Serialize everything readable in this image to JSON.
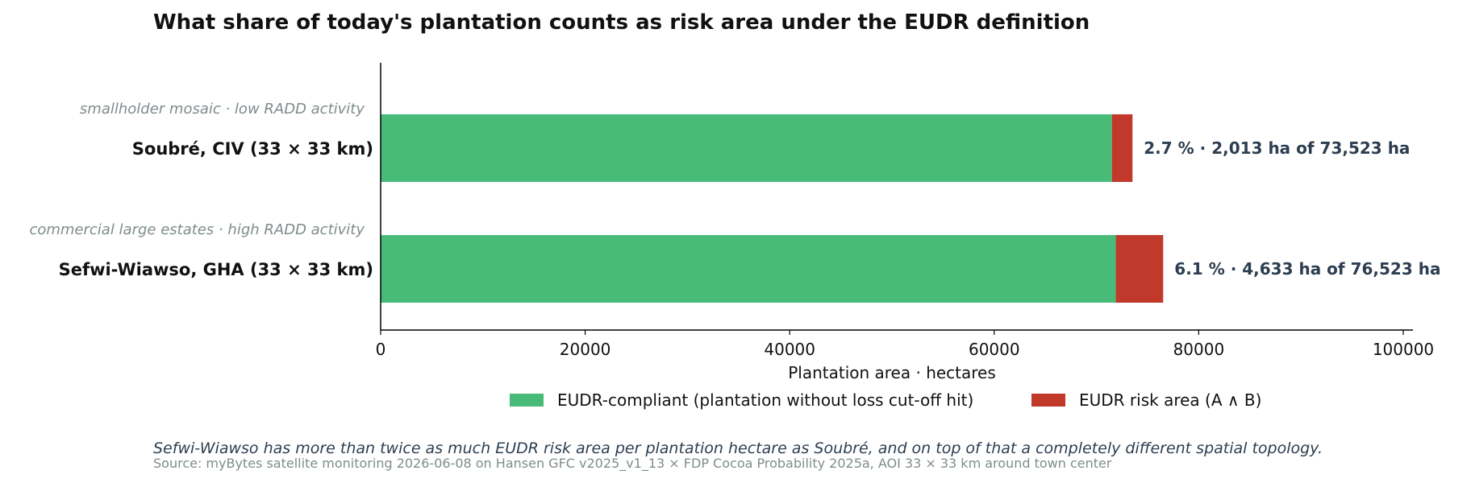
{
  "chart_data": {
    "type": "bar",
    "orientation": "horizontal",
    "stacked": true,
    "title": "What share of today's plantation counts as risk area under the EUDR definition",
    "xlabel": "Plantation area · hectares",
    "ylabel": "",
    "xlim": [
      0,
      100000
    ],
    "x_ticks": [
      0,
      20000,
      40000,
      60000,
      80000,
      100000
    ],
    "x_tick_labels": [
      "0",
      "20000",
      "40000",
      "60000",
      "80000",
      "100000"
    ],
    "grid": false,
    "legend_position": "bottom-center",
    "categories": [
      {
        "label": "Soubré, CIV (33 × 33 km)",
        "sublabel": "smallholder mosaic · low RADD activity",
        "annotation": "2.7 %  ·  2,013 ha of 73,523 ha"
      },
      {
        "label": "Sefwi-Wiawso, GHA (33 × 33 km)",
        "sublabel": "commercial large estates · high RADD activity",
        "annotation": "6.1 %  ·  4,633 ha of 76,523 ha"
      }
    ],
    "series": [
      {
        "name": "EUDR-compliant (plantation without loss cut-off hit)",
        "color": "#48bb78",
        "values": [
          71510,
          71890
        ]
      },
      {
        "name": "EUDR risk area (A ∧ B)",
        "color": "#c0392b",
        "values": [
          2013,
          4633
        ]
      }
    ],
    "footnote": "Sefwi-Wiawso has more than twice as much EUDR risk area per plantation hectare as Soubré, and on top of that a completely different spatial topology.",
    "source": "Source: myBytes satellite monitoring 2026-06-08 on Hansen GFC v2025_v1_13 × FDP Cocoa Probability 2025a, AOI 33 × 33 km around town center"
  }
}
